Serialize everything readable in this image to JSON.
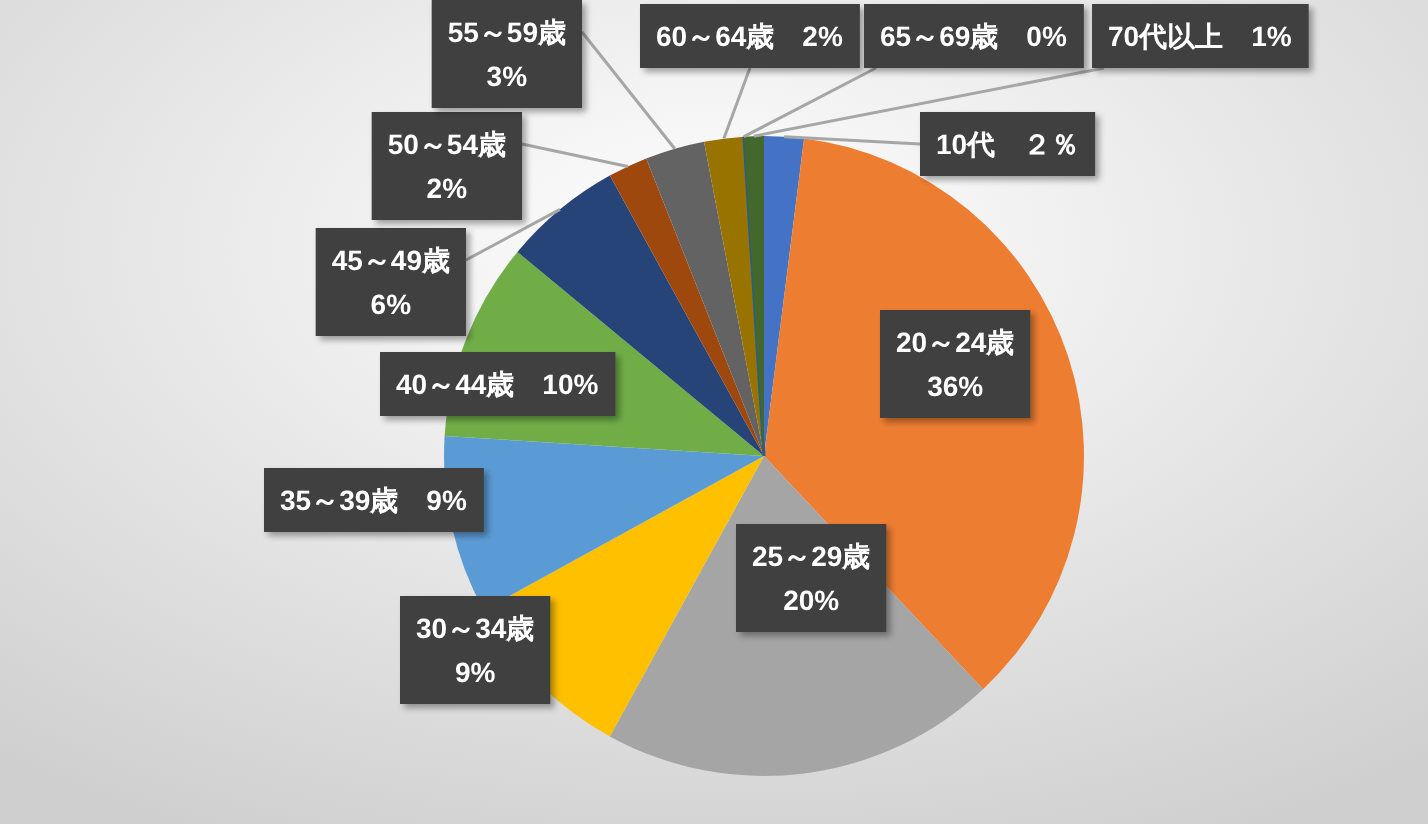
{
  "chart_data": {
    "type": "pie",
    "categories": [
      "10代",
      "20～24歳",
      "25～29歳",
      "30～34歳",
      "35～39歳",
      "40～44歳",
      "45～49歳",
      "50～54歳",
      "55～59歳",
      "60～64歳",
      "65～69歳",
      "70代以上"
    ],
    "values": [
      2,
      36,
      20,
      9,
      9,
      10,
      6,
      2,
      3,
      2,
      0,
      1
    ],
    "value_labels": [
      "２％",
      "36%",
      "20%",
      "9%",
      "9%",
      "10%",
      "6%",
      "2%",
      "3%",
      "2%",
      "0%",
      "1%"
    ],
    "colors": [
      "#4472c4",
      "#ed7d31",
      "#a5a5a5",
      "#ffc000",
      "#5b9bd5",
      "#70ad47",
      "#264478",
      "#9e480e",
      "#636363",
      "#997300",
      "#255e91",
      "#43682b"
    ]
  }
}
